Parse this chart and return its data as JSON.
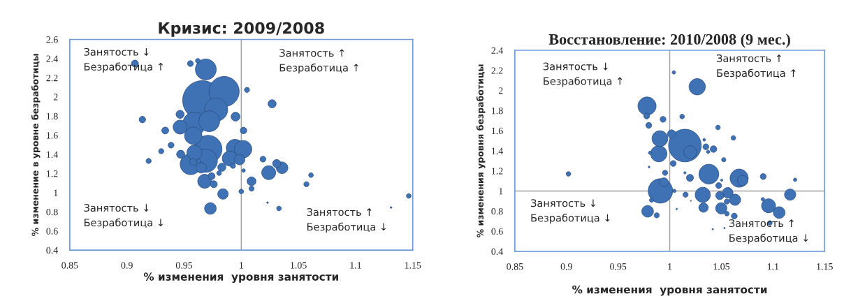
{
  "chart_data": [
    {
      "type": "bubble",
      "title": "Кризис: 2009/2008",
      "xlabel": "% изменения  уровня занятости",
      "ylabel": "% изменение в уровне безработицы",
      "xlim": [
        0.85,
        1.15
      ],
      "xticks": [
        0.85,
        0.9,
        0.95,
        1,
        1.05,
        1.1,
        1.15
      ],
      "ylim": [
        0.4,
        2.6
      ],
      "yticks": [
        0.4,
        0.6,
        0.8,
        1,
        1.2,
        1.4,
        1.6,
        1.8,
        2,
        2.2,
        2.4,
        2.6
      ],
      "ref_lines": [
        {
          "axis": "x",
          "value": 1,
          "color": "#a0a0a0"
        }
      ],
      "annotations": [
        "Занятость ↓\nБезработица ↑",
        "Занятость ↑\nБезработица ↑",
        "Занятость ↓\nБезработица ↓",
        "Занятость ↑\nБезработица ↓"
      ],
      "series": [
        {
          "color": "#3f72b5",
          "x": [
            0.907,
            0.9555,
            0.962,
            0.969,
            0.966,
            0.985,
            0.978,
            1.005,
            1.027,
            0.9135,
            0.9465,
            0.972,
            0.959,
            0.9465,
            0.995,
            0.9335,
            1.002,
            0.958,
            0.9386,
            0.971,
            0.9945,
            1.0016,
            0.93,
            0.947,
            0.959,
            0.919,
            0.9557,
            0.969,
            0.99,
            0.9986,
            0.965,
            0.958,
            0.983,
            0.9927,
            1.019,
            1.031,
            1.0357,
            1.024,
            1.002,
            1.061,
            1.057,
            0.974,
            0.9806,
            0.968,
            0.976,
            1.009,
            1.009,
            0.984,
            1.0,
            1.1465,
            0.973,
            1.033,
            1.131,
            1.023
          ],
          "values": [
            2.348,
            2.348,
            2.377,
            2.287,
            1.964,
            2.056,
            1.867,
            2.073,
            1.928,
            1.763,
            1.818,
            1.746,
            1.721,
            1.685,
            1.794,
            1.649,
            1.649,
            1.595,
            1.496,
            1.454,
            1.466,
            1.454,
            1.433,
            1.401,
            1.418,
            1.331,
            1.297,
            1.333,
            1.357,
            1.345,
            1.26,
            1.321,
            1.265,
            1.28,
            1.35,
            1.304,
            1.26,
            1.209,
            1.231,
            1.183,
            1.088,
            1.173,
            1.204,
            1.119,
            1.088,
            1.119,
            1.042,
            0.986,
            1.012,
            0.966,
            0.835,
            0.835,
            0.845,
            0.896
          ],
          "sizes": [
            0.031,
            0.022,
            0.014,
            0.28,
            1,
            0.585,
            0.346,
            0.017,
            0.042,
            0.027,
            0.042,
            0.28,
            0.346,
            0.125,
            0.05,
            0.031,
            0.027,
            0.195,
            0.022,
            0.498,
            0.195,
            0.195,
            0.017,
            0.042,
            0.146,
            0.017,
            0.28,
            0.346,
            0.146,
            0.07,
            0.07,
            0.031,
            0.042,
            0.017,
            0.022,
            0.042,
            0.087,
            0.125,
            0.008,
            0.014,
            0.017,
            0.031,
            0.014,
            0.125,
            0.031,
            0.05,
            0.017,
            0.07,
            0.014,
            0.014,
            0.087,
            0.014,
            0.002,
            0.002
          ]
        }
      ]
    },
    {
      "type": "bubble",
      "title": "Восстановление: 2010/2008 (9 мес.)",
      "xlabel": "% изменения  уровня занятости",
      "ylabel": "% изменения уровня безработицы",
      "xlim": [
        0.85,
        1.15
      ],
      "xticks": [
        0.85,
        0.9,
        0.95,
        1,
        1.05,
        1.1,
        1.15
      ],
      "ylim": [
        0.4,
        2.4
      ],
      "yticks": [
        0.4,
        0.6,
        0.8,
        1,
        1.2,
        1.4,
        1.6,
        1.8,
        2,
        2.2,
        2.4
      ],
      "ref_lines": [
        {
          "axis": "x",
          "value": 1,
          "color": "#a0a0a0"
        },
        {
          "axis": "y",
          "value": 1,
          "color": "#a0a0a0"
        }
      ],
      "annotations": [
        "Занятость ↓\nБезработица ↑",
        "Занятость ↑\nБезработица ↑",
        "Занятость ↓\nБезработица ↓",
        "Занятость ↑\nБезработица ↓"
      ],
      "series": [
        {
          "color": "#3f72b5",
          "x": [
            1.004,
            1.0266,
            0.978,
            0.9777,
            0.9935,
            1.012,
            0.9797,
            1.0467,
            0.9905,
            1.0018,
            1.0147,
            1.0616,
            1.0334,
            1.035,
            1.0424,
            1.0372,
            1.0199,
            0.9894,
            0.981,
            1.0034,
            1.0523,
            0.98,
            0.9955,
            0.9019,
            1.0147,
            1.0196,
            1.0379,
            1.0672,
            1.0706,
            1.0905,
            1.1214,
            1.0503,
            1.0474,
            0.9944,
            0.991,
            1.0045,
            1.0562,
            1.0485,
            1.032,
            1.0153,
            1.1166,
            1.0632,
            1.0553,
            0.9824,
            1.0902,
            1.0327,
            1.0499,
            1.0957,
            1.106,
            0.9786,
            0.9874,
            1.0553,
            1.0625,
            1.097,
            1.0417,
            1.053,
            1.0068,
            1.0205
          ],
          "values": [
            2.18,
            2.037,
            1.845,
            1.746,
            1.713,
            1.741,
            1.653,
            1.632,
            1.521,
            1.568,
            1.452,
            1.528,
            1.51,
            1.44,
            1.417,
            1.39,
            1.387,
            1.371,
            1.38,
            1.274,
            1.311,
            1.239,
            1.181,
            1.17,
            1.181,
            1.131,
            1.168,
            1.128,
            1.105,
            1.144,
            1.112,
            1.108,
            1.054,
            1.087,
            1.001,
            1.001,
            0.983,
            0.955,
            0.962,
            0.964,
            0.964,
            0.913,
            0.895,
            0.909,
            0.918,
            0.835,
            0.828,
            0.853,
            0.786,
            0.798,
            0.758,
            0.775,
            0.751,
            0.682,
            0.62,
            0.631,
            0.821,
            0.902
          ],
          "sizes": [
            0.011,
            0.25,
            0.31,
            0.032,
            0.032,
            0.02,
            0.032,
            0.02,
            0.236,
            0.0625,
            1,
            0.02,
            0.007,
            0.032,
            0.04,
            0.011,
            0.154,
            0.25,
            0.011,
            0.032,
            0.017,
            0.003,
            0.025,
            0.02,
            0.005,
            0.046,
            0.369,
            0.31,
            0.103,
            0.032,
            0.011,
            0.005,
            0.032,
            0.074,
            0.5625,
            0.011,
            0.103,
            0.0625,
            0.216,
            0.025,
            0.118,
            0.118,
            0.025,
            0.017,
            0.011,
            0.082,
            0.118,
            0.184,
            0.128,
            0.128,
            0.025,
            0.02,
            0.032,
            0.02,
            0.002,
            0.002,
            0.002,
            0.001
          ]
        }
      ]
    }
  ]
}
